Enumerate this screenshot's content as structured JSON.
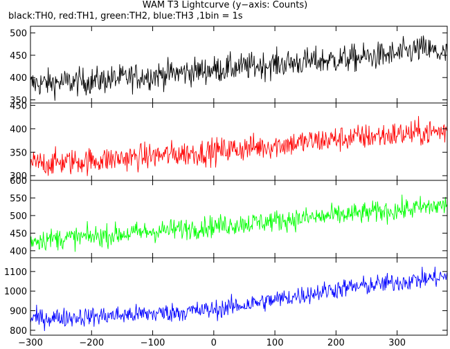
{
  "title": "WAM T3 Lightcurve (y−axis: Counts)",
  "subtitle": "black:TH0, red:TH1, green:TH2, blue:TH3 ,1bin = 1s",
  "chart_data": {
    "type": "line",
    "x_range": [
      -300,
      382
    ],
    "x_ticks": [
      -300,
      -200,
      -100,
      0,
      100,
      200,
      300
    ],
    "x_tick_labels": [
      "−300",
      "−200",
      "−100",
      "0",
      "100",
      "200",
      "300"
    ],
    "series": [
      {
        "name": "TH0",
        "color": "#000000",
        "ylim": [
          343,
          515
        ],
        "y_ticks": [
          350,
          400,
          450,
          500
        ],
        "trend": {
          "x": [
            -300,
            -200,
            -100,
            0,
            100,
            200,
            300,
            340,
            382
          ],
          "y": [
            386,
            392,
            405,
            418,
            430,
            440,
            452,
            465,
            450
          ]
        },
        "noise_amplitude": 22
      },
      {
        "name": "TH1",
        "color": "#ff0000",
        "ylim": [
          290,
          455
        ],
        "y_ticks": [
          300,
          350,
          400,
          450
        ],
        "trend": {
          "x": [
            -300,
            -200,
            -100,
            0,
            100,
            200,
            300,
            382
          ],
          "y": [
            325,
            332,
            342,
            352,
            365,
            378,
            388,
            395
          ]
        },
        "noise_amplitude": 20
      },
      {
        "name": "TH2",
        "color": "#00ff00",
        "ylim": [
          380,
          600
        ],
        "y_ticks": [
          400,
          450,
          500,
          550,
          600
        ],
        "trend": {
          "x": [
            -300,
            -200,
            -100,
            0,
            100,
            200,
            300,
            382
          ],
          "y": [
            430,
            440,
            455,
            470,
            485,
            500,
            515,
            530
          ]
        },
        "noise_amplitude": 22
      },
      {
        "name": "TH3",
        "color": "#0000ff",
        "ylim": [
          775,
          1170
        ],
        "y_ticks": [
          800,
          900,
          1000,
          1100
        ],
        "trend": {
          "x": [
            -300,
            -200,
            -100,
            0,
            100,
            200,
            300,
            382
          ],
          "y": [
            860,
            870,
            885,
            905,
            955,
            1010,
            1045,
            1075
          ]
        },
        "noise_amplitude": 35
      }
    ]
  }
}
